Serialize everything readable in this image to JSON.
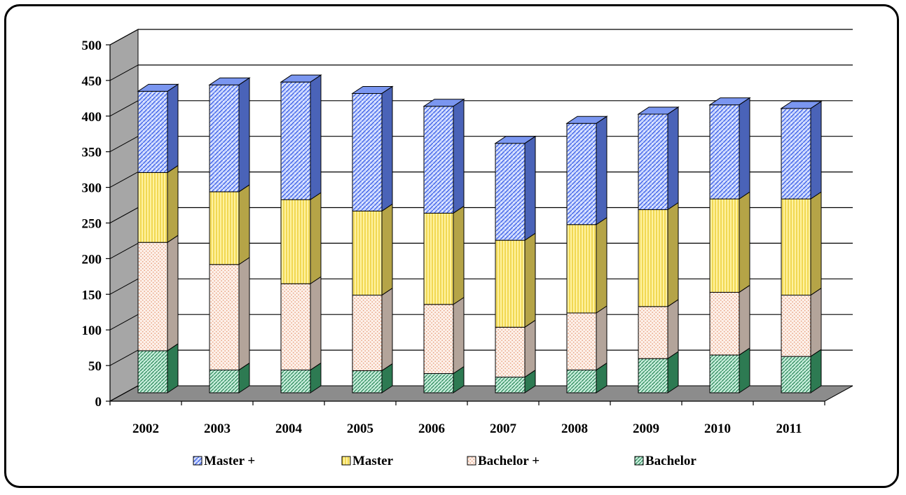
{
  "chart_data": {
    "type": "bar",
    "stacked": true,
    "three_d": true,
    "title": "",
    "xlabel": "",
    "ylabel": "",
    "categories": [
      "2002",
      "2003",
      "2004",
      "2005",
      "2006",
      "2007",
      "2008",
      "2009",
      "2010",
      "2011"
    ],
    "ylim": [
      0,
      500
    ],
    "yticks": [
      "0",
      "50",
      "100",
      "150",
      "200",
      "250",
      "300",
      "350",
      "400",
      "450",
      "500"
    ],
    "grid": true,
    "legend_position": "bottom",
    "series": [
      {
        "name": "Bachelor",
        "color": "#339966",
        "pattern": "dotted-diagonal",
        "values": [
          59,
          32,
          32,
          31,
          27,
          22,
          32,
          48,
          53,
          51
        ]
      },
      {
        "name": "Bachelor +",
        "color": "#f3c9b2",
        "pattern": "fine-dots",
        "values": [
          152,
          148,
          121,
          106,
          97,
          70,
          80,
          73,
          88,
          86
        ]
      },
      {
        "name": "Master",
        "color": "#ffe666",
        "pattern": "vertical-lines",
        "values": [
          98,
          102,
          118,
          118,
          128,
          122,
          124,
          136,
          131,
          135
        ]
      },
      {
        "name": "Master +",
        "color": "#3366ff",
        "pattern": "crosshatch-dots",
        "values": [
          114,
          150,
          165,
          165,
          150,
          136,
          142,
          134,
          132,
          127
        ]
      }
    ],
    "legend_order": [
      "Master +",
      "Master",
      "Bachelor +",
      "Bachelor"
    ]
  }
}
